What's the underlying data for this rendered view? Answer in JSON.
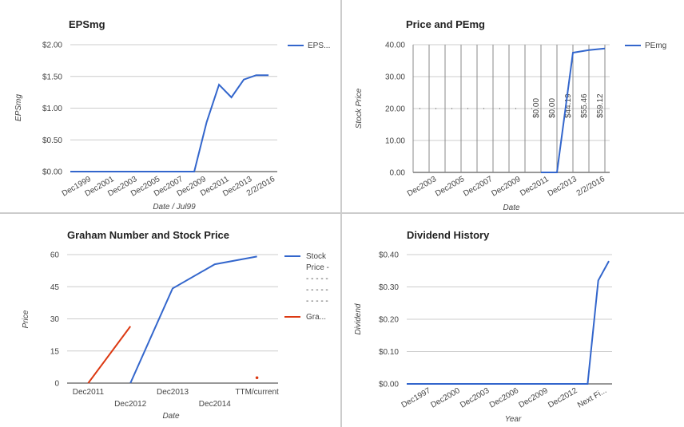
{
  "colors": {
    "line": "#3366cc",
    "red": "#dc3912",
    "grid": "#cccccc",
    "axis": "#333333",
    "text": "#222222",
    "tick": "#444444"
  },
  "chart_data": [
    {
      "type": "line",
      "title": "EPSmg",
      "xlabel": "Date / Jul99",
      "ylabel": "EPSmg",
      "x_ticks": [
        "Dec1999",
        "Dec2001",
        "Dec2003",
        "Dec2005",
        "Dec2007",
        "Dec2009",
        "Dec2011",
        "Dec2013",
        "2/2/2016"
      ],
      "y_ticks": [
        "$0.00",
        "$0.50",
        "$1.00",
        "$1.50",
        "$2.00"
      ],
      "ylim": [
        0,
        2
      ],
      "legend": [
        "EPS..."
      ],
      "legend_position": "right",
      "series": [
        {
          "name": "EPS...",
          "x": [
            0,
            1,
            2,
            3,
            4,
            5,
            6,
            7,
            8,
            9,
            10,
            11,
            12,
            13,
            14,
            15,
            16
          ],
          "values": [
            0,
            0,
            0,
            0,
            0,
            0,
            0,
            0,
            0,
            0,
            0,
            0.78,
            1.37,
            1.17,
            1.45,
            1.52,
            1.52
          ]
        }
      ],
      "x_max": 16.7
    },
    {
      "type": "line",
      "title": "Price and PEmg",
      "xlabel": "Date",
      "ylabel": "Stock Price",
      "x_ticks": [
        "Dec2003",
        "Dec2005",
        "Dec2007",
        "Dec2009",
        "Dec2011",
        "Dec2013",
        "2/2/2016"
      ],
      "y_ticks": [
        "0.00",
        "10.00",
        "20.00",
        "30.00",
        "40.00"
      ],
      "ylim": [
        0,
        40
      ],
      "legend": [
        "PEmg"
      ],
      "legend_position": "right",
      "annotations": [
        "$0.00",
        "$0.00",
        "$44.19",
        "$55.46",
        "$59.12"
      ],
      "series": [
        {
          "name": "PEmg",
          "x": [
            8,
            9,
            10,
            11,
            12
          ],
          "values": [
            0,
            0,
            37.5,
            38.3,
            38.8
          ]
        }
      ],
      "x_max": 12.3
    },
    {
      "type": "line",
      "title": "Graham Number and Stock Price",
      "xlabel": "Date",
      "ylabel": "Price",
      "categories": [
        "Dec2011",
        "Dec2012",
        "Dec2013",
        "Dec2014",
        "TTM/current"
      ],
      "y_ticks": [
        "0",
        "15",
        "30",
        "45",
        "60"
      ],
      "ylim": [
        0,
        60
      ],
      "legend": [
        "Stock",
        "Price -",
        "- - - - -",
        "- - - - -",
        "- - - - -",
        "Gra..."
      ],
      "legend_position": "right",
      "series": [
        {
          "name": "Stock Price",
          "x": [
            1,
            2,
            3,
            4
          ],
          "values": [
            0,
            44.2,
            55.5,
            59.1
          ]
        },
        {
          "name": "Gra...",
          "x": [
            0,
            1
          ],
          "values": [
            0,
            26.5
          ]
        },
        {
          "name": "Gra... current",
          "x": [
            4
          ],
          "values": [
            2.5
          ]
        }
      ]
    },
    {
      "type": "line",
      "title": "Dividend History",
      "xlabel": "Year",
      "ylabel": "Dividend",
      "x_ticks": [
        "Dec1997",
        "Dec2000",
        "Dec2003",
        "Dec2006",
        "Dec2009",
        "Dec2012",
        "Next Fi..."
      ],
      "y_ticks": [
        "$0.00",
        "$0.10",
        "$0.20",
        "$0.30",
        "$0.40"
      ],
      "ylim": [
        0,
        0.4
      ],
      "series": [
        {
          "name": "Dividend",
          "x": [
            0,
            1,
            2,
            3,
            4,
            5,
            6,
            7,
            8,
            9,
            10,
            11,
            12,
            13,
            14,
            15,
            16,
            17,
            18,
            19
          ],
          "values": [
            0,
            0,
            0,
            0,
            0,
            0,
            0,
            0,
            0,
            0,
            0,
            0,
            0,
            0,
            0,
            0,
            0,
            0,
            0.32,
            0.38
          ]
        }
      ],
      "x_max": 19.3
    }
  ]
}
